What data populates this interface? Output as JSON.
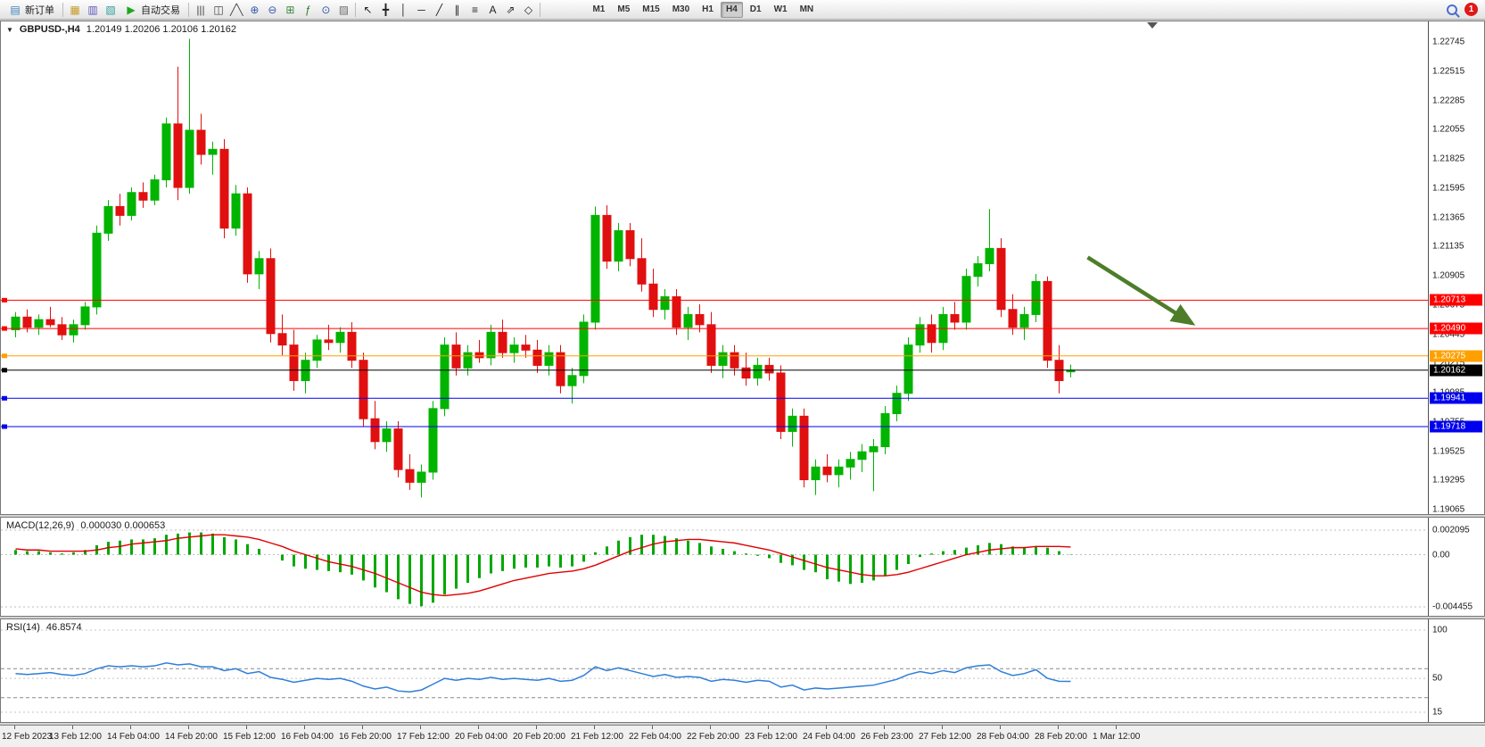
{
  "toolbar": {
    "new_order_label": "新订单",
    "new_order_icon": "▤",
    "autotrade_label": "自动交易",
    "autotrade_icon": "▶",
    "left_icons": [
      {
        "name": "new-chart-icon",
        "glyph": "▦",
        "color": "#c59a28"
      },
      {
        "name": "profiles-icon",
        "glyph": "▥",
        "color": "#5b55c0"
      },
      {
        "name": "data-window-icon",
        "glyph": "▧",
        "color": "#2f9e9e"
      }
    ],
    "chart_icons": [
      {
        "name": "bar-chart-icon",
        "glyph": "|||",
        "color": "#444444"
      },
      {
        "name": "candlestick-chart-icon",
        "glyph": "◫",
        "color": "#444444"
      },
      {
        "name": "line-chart-icon",
        "glyph": "╱╲",
        "color": "#444444"
      },
      {
        "name": "zoom-in-icon",
        "glyph": "⊕",
        "color": "#3558b0"
      },
      {
        "name": "zoom-out-icon",
        "glyph": "⊖",
        "color": "#3558b0"
      },
      {
        "name": "tile-windows-icon",
        "glyph": "⊞",
        "color": "#3a8a3a"
      },
      {
        "name": "indicators-icon",
        "glyph": "ƒ",
        "color": "#2a7a2a"
      },
      {
        "name": "periods-icon",
        "glyph": "⊙",
        "color": "#3558b0"
      },
      {
        "name": "templates-icon",
        "glyph": "▨",
        "color": "#707070"
      }
    ],
    "draw_icons": [
      {
        "name": "cursor-icon",
        "glyph": "↖",
        "color": "#222222"
      },
      {
        "name": "crosshair-icon",
        "glyph": "╋",
        "color": "#222222"
      },
      {
        "name": "vertical-line-icon",
        "glyph": "│",
        "color": "#222222"
      },
      {
        "name": "horizontal-line-icon",
        "glyph": "─",
        "color": "#222222"
      },
      {
        "name": "trendline-icon",
        "glyph": "╱",
        "color": "#222222"
      },
      {
        "name": "equidistant-channel-icon",
        "glyph": "∥",
        "color": "#222222"
      },
      {
        "name": "fibonacci-icon",
        "glyph": "≡",
        "color": "#222222"
      },
      {
        "name": "text-label-icon",
        "glyph": "A",
        "color": "#222222"
      },
      {
        "name": "arrows-icon",
        "glyph": "⇗",
        "color": "#222222"
      },
      {
        "name": "shapes-icon",
        "glyph": "◇",
        "color": "#222222"
      }
    ],
    "timeframes": [
      "M1",
      "M5",
      "M15",
      "M30",
      "H1",
      "H4",
      "D1",
      "W1",
      "MN"
    ],
    "active_timeframe": "H4",
    "notification_count": "1"
  },
  "chart": {
    "menu_icon": "▼",
    "title_symbol": "GBPUSD-,H4",
    "title_ohlc": "1.20149 1.20206 1.20106 1.20162"
  },
  "macd": {
    "label": "MACD(12,26,9)",
    "values": "0.000030 0.000653",
    "axis_labels": [
      "0.002095",
      "0.00",
      "-0.004455"
    ]
  },
  "rsi": {
    "label": "RSI(14)",
    "value": "46.8574",
    "axis_labels": [
      "100",
      "50",
      "15"
    ]
  },
  "chart_data": {
    "type": "candlestick",
    "symbol": "GBPUSD",
    "timeframe": "H4",
    "ohlc_current": {
      "open": 1.20149,
      "high": 1.20206,
      "low": 1.20106,
      "close": 1.20162
    },
    "price_range": {
      "max": 1.22745,
      "min": 1.19065
    },
    "price_axis_labels": [
      "1.22745",
      "1.22515",
      "1.22285",
      "1.22055",
      "1.21825",
      "1.21595",
      "1.21365",
      "1.21135",
      "1.20905",
      "1.20675",
      "1.20445",
      "1.20215",
      "1.19985",
      "1.19755",
      "1.19525",
      "1.19295",
      "1.19065"
    ],
    "time_labels": [
      "12 Feb 2023",
      "13 Feb 12:00",
      "14 Feb 04:00",
      "14 Feb 20:00",
      "15 Feb 12:00",
      "16 Feb 04:00",
      "16 Feb 20:00",
      "17 Feb 12:00",
      "20 Feb 04:00",
      "20 Feb 20:00",
      "21 Feb 12:00",
      "22 Feb 04:00",
      "22 Feb 20:00",
      "23 Feb 12:00",
      "24 Feb 04:00",
      "26 Feb 23:00",
      "27 Feb 12:00",
      "28 Feb 04:00",
      "28 Feb 20:00",
      "1 Mar 12:00"
    ],
    "colors": {
      "up": "#00b400",
      "down": "#e01010"
    },
    "candles": [
      [
        1.2048,
        1.2062,
        1.2042,
        1.2058
      ],
      [
        1.2058,
        1.2064,
        1.2046,
        1.205
      ],
      [
        1.205,
        1.206,
        1.2044,
        1.2056
      ],
      [
        1.2056,
        1.2066,
        1.205,
        1.2052
      ],
      [
        1.2052,
        1.2058,
        1.204,
        1.2044
      ],
      [
        1.2044,
        1.2056,
        1.2038,
        1.2052
      ],
      [
        1.2052,
        1.207,
        1.2048,
        1.2066
      ],
      [
        1.2066,
        1.213,
        1.206,
        1.2124
      ],
      [
        1.2124,
        1.215,
        1.2118,
        1.2145
      ],
      [
        1.2145,
        1.2155,
        1.213,
        1.2138
      ],
      [
        1.2138,
        1.216,
        1.2134,
        1.2156
      ],
      [
        1.2156,
        1.2164,
        1.2144,
        1.215
      ],
      [
        1.215,
        1.217,
        1.2146,
        1.2166
      ],
      [
        1.2166,
        1.2215,
        1.216,
        1.221
      ],
      [
        1.221,
        1.2255,
        1.215,
        1.216
      ],
      [
        1.216,
        1.2277,
        1.2155,
        1.2205
      ],
      [
        1.2205,
        1.2218,
        1.2178,
        1.2186
      ],
      [
        1.2186,
        1.2196,
        1.217,
        1.219
      ],
      [
        1.219,
        1.2198,
        1.212,
        1.2128
      ],
      [
        1.2128,
        1.2162,
        1.2122,
        1.2155
      ],
      [
        1.2155,
        1.216,
        1.2085,
        1.2092
      ],
      [
        1.2092,
        1.211,
        1.208,
        1.2104
      ],
      [
        1.2104,
        1.2112,
        1.2038,
        1.2045
      ],
      [
        1.2045,
        1.206,
        1.2028,
        1.2036
      ],
      [
        1.2036,
        1.2048,
        1.2,
        1.2008
      ],
      [
        1.2008,
        1.203,
        1.1998,
        1.2024
      ],
      [
        1.2024,
        1.2044,
        1.2018,
        1.204
      ],
      [
        1.204,
        1.2052,
        1.2032,
        1.2038
      ],
      [
        1.2038,
        1.205,
        1.203,
        1.2046
      ],
      [
        1.2046,
        1.2054,
        1.2018,
        1.2024
      ],
      [
        1.2024,
        1.203,
        1.1972,
        1.1978
      ],
      [
        1.1978,
        1.1992,
        1.1954,
        1.196
      ],
      [
        1.196,
        1.1976,
        1.1952,
        1.197
      ],
      [
        1.197,
        1.1976,
        1.1932,
        1.1938
      ],
      [
        1.1938,
        1.195,
        1.1922,
        1.1928
      ],
      [
        1.1928,
        1.1942,
        1.1916,
        1.1936
      ],
      [
        1.1936,
        1.1992,
        1.193,
        1.1986
      ],
      [
        1.1986,
        1.2042,
        1.198,
        1.2036
      ],
      [
        1.2036,
        1.2046,
        1.2012,
        1.2018
      ],
      [
        1.2018,
        1.2036,
        1.2012,
        1.203
      ],
      [
        1.203,
        1.204,
        1.2022,
        1.2026
      ],
      [
        1.2026,
        1.2052,
        1.202,
        1.2046
      ],
      [
        1.2046,
        1.2056,
        1.2026,
        1.203
      ],
      [
        1.203,
        1.2042,
        1.2022,
        1.2036
      ],
      [
        1.2036,
        1.2044,
        1.2026,
        1.2032
      ],
      [
        1.2032,
        1.204,
        1.2014,
        1.202
      ],
      [
        1.202,
        1.2036,
        1.2012,
        1.203
      ],
      [
        1.203,
        1.2036,
        1.1998,
        1.2004
      ],
      [
        1.2004,
        1.2018,
        1.199,
        1.2012
      ],
      [
        1.2012,
        1.206,
        1.2006,
        1.2054
      ],
      [
        1.2054,
        1.2145,
        1.2048,
        1.2138
      ],
      [
        1.2138,
        1.2146,
        1.2096,
        1.2102
      ],
      [
        1.2102,
        1.2132,
        1.2094,
        1.2126
      ],
      [
        1.2126,
        1.2132,
        1.2098,
        1.2104
      ],
      [
        1.2104,
        1.212,
        1.2078,
        1.2084
      ],
      [
        1.2084,
        1.2096,
        1.2058,
        1.2064
      ],
      [
        1.2064,
        1.208,
        1.2056,
        1.2074
      ],
      [
        1.2074,
        1.208,
        1.2044,
        1.205
      ],
      [
        1.205,
        1.2066,
        1.204,
        1.206
      ],
      [
        1.206,
        1.2068,
        1.2046,
        1.2052
      ],
      [
        1.2052,
        1.2062,
        1.2014,
        1.202
      ],
      [
        1.202,
        1.2036,
        1.201,
        1.203
      ],
      [
        1.203,
        1.2036,
        1.2012,
        1.2018
      ],
      [
        1.2018,
        1.203,
        1.2004,
        1.201
      ],
      [
        1.201,
        1.2026,
        1.2004,
        1.202
      ],
      [
        1.202,
        1.2026,
        1.2008,
        1.2014
      ],
      [
        1.2014,
        1.202,
        1.1962,
        1.1968
      ],
      [
        1.1968,
        1.1986,
        1.1956,
        1.198
      ],
      [
        1.198,
        1.1986,
        1.1924,
        1.193
      ],
      [
        1.193,
        1.1946,
        1.1918,
        1.194
      ],
      [
        1.194,
        1.195,
        1.1928,
        1.1934
      ],
      [
        1.1934,
        1.1946,
        1.1924,
        1.194
      ],
      [
        1.194,
        1.1952,
        1.193,
        1.1946
      ],
      [
        1.1946,
        1.1958,
        1.1936,
        1.1952
      ],
      [
        1.1952,
        1.1962,
        1.1921,
        1.1956
      ],
      [
        1.1956,
        1.1988,
        1.195,
        1.1982
      ],
      [
        1.1982,
        1.2004,
        1.1976,
        1.1998
      ],
      [
        1.1998,
        1.2042,
        1.1992,
        1.2036
      ],
      [
        1.2036,
        1.2058,
        1.203,
        1.2052
      ],
      [
        1.2052,
        1.206,
        1.203,
        1.2038
      ],
      [
        1.2038,
        1.2066,
        1.2032,
        1.206
      ],
      [
        1.206,
        1.207,
        1.2048,
        1.2054
      ],
      [
        1.2054,
        1.2096,
        1.2048,
        1.209
      ],
      [
        1.209,
        1.2106,
        1.2082,
        1.21
      ],
      [
        1.21,
        1.2143,
        1.2094,
        1.2112
      ],
      [
        1.2112,
        1.212,
        1.2058,
        1.2064
      ],
      [
        1.2064,
        1.2076,
        1.2044,
        1.205
      ],
      [
        1.205,
        1.2066,
        1.204,
        1.206
      ],
      [
        1.206,
        1.2092,
        1.2054,
        1.2086
      ],
      [
        1.2086,
        1.209,
        1.2018,
        1.2024
      ],
      [
        1.2024,
        1.2036,
        1.1998,
        1.2008
      ],
      [
        1.20149,
        1.20206,
        1.20106,
        1.20162
      ]
    ],
    "hlines": [
      {
        "price": 1.20713,
        "label": "1.20713",
        "color": "#ff0000"
      },
      {
        "price": 1.2049,
        "label": "1.20490",
        "color": "#ff0000"
      },
      {
        "price": 1.20275,
        "label": "1.20275",
        "color": "#ffa000"
      },
      {
        "price": 1.20162,
        "label": "1.20162",
        "color": "#000000",
        "current": true
      },
      {
        "price": 1.19941,
        "label": "1.19941",
        "color": "#0000ee"
      },
      {
        "price": 1.19718,
        "label": "1.19718",
        "color": "#0000ee"
      }
    ],
    "arrow_annotation": {
      "from": {
        "bar": 92.5,
        "price": 1.2105
      },
      "to": {
        "bar": 101.5,
        "price": 1.2053
      },
      "color": "#4e7d2a"
    },
    "macd": {
      "range": {
        "max": 0.002095,
        "min": -0.004455
      },
      "histogram_color": "#00a800",
      "signal_color": "#e00000",
      "histogram": [
        0.0004,
        0.0003,
        0.0003,
        0.0002,
        0.0001,
        0.0002,
        0.0004,
        0.0008,
        0.0011,
        0.0012,
        0.0013,
        0.0013,
        0.0014,
        0.0017,
        0.0018,
        0.0019,
        0.0019,
        0.0018,
        0.0015,
        0.0013,
        0.0009,
        0.0005,
        0.0,
        -0.0005,
        -0.001,
        -0.0012,
        -0.0013,
        -0.0014,
        -0.0015,
        -0.0017,
        -0.0022,
        -0.0028,
        -0.0032,
        -0.0038,
        -0.0042,
        -0.0044,
        -0.0041,
        -0.0034,
        -0.0029,
        -0.0024,
        -0.002,
        -0.0016,
        -0.0014,
        -0.0012,
        -0.0011,
        -0.0011,
        -0.001,
        -0.0011,
        -0.001,
        -0.0006,
        0.0002,
        0.0007,
        0.0012,
        0.0015,
        0.0017,
        0.0017,
        0.0016,
        0.0014,
        0.0012,
        0.001,
        0.0007,
        0.0005,
        0.0003,
        0.0001,
        -0.0001,
        -0.0003,
        -0.0007,
        -0.0009,
        -0.0013,
        -0.0015,
        -0.0021,
        -0.0023,
        -0.0025,
        -0.0024,
        -0.0022,
        -0.0018,
        -0.0013,
        -0.0008,
        -0.0002,
        0.0001,
        0.0003,
        0.0004,
        0.0006,
        0.0008,
        0.001,
        0.0009,
        0.0007,
        0.0006,
        0.0007,
        0.0006,
        0.0003,
        3e-05
      ],
      "signal": [
        0.0005,
        0.0004,
        0.0004,
        0.0003,
        0.0003,
        0.0003,
        0.0003,
        0.0004,
        0.0006,
        0.0007,
        0.0009,
        0.001,
        0.0011,
        0.0012,
        0.0014,
        0.0015,
        0.0016,
        0.0017,
        0.0017,
        0.0016,
        0.0015,
        0.0013,
        0.001,
        0.0007,
        0.0003,
        0.0,
        -0.0003,
        -0.0006,
        -0.0008,
        -0.001,
        -0.0013,
        -0.0016,
        -0.002,
        -0.0024,
        -0.0028,
        -0.0032,
        -0.0034,
        -0.0035,
        -0.0034,
        -0.0033,
        -0.0031,
        -0.0028,
        -0.0025,
        -0.0022,
        -0.002,
        -0.0018,
        -0.0016,
        -0.0015,
        -0.0014,
        -0.0012,
        -0.0009,
        -0.0005,
        -0.0001,
        0.0003,
        0.0006,
        0.0009,
        0.0011,
        0.0012,
        0.0013,
        0.0013,
        0.0012,
        0.0011,
        0.001,
        0.0008,
        0.0006,
        0.0004,
        0.0001,
        -0.0002,
        -0.0005,
        -0.0008,
        -0.0011,
        -0.0013,
        -0.0015,
        -0.0017,
        -0.0018,
        -0.0018,
        -0.0017,
        -0.0015,
        -0.0012,
        -0.0009,
        -0.0006,
        -0.0003,
        0.0,
        0.0002,
        0.0004,
        0.0005,
        0.0006,
        0.0006,
        0.0007,
        0.0007,
        0.0007,
        0.00065
      ]
    },
    "rsi": {
      "range": {
        "max": 100,
        "min": 15
      },
      "levels": [
        60,
        30
      ],
      "line_color": "#2f7ed8",
      "values": [
        55,
        54,
        55,
        56,
        54,
        53,
        55,
        60,
        63,
        62,
        63,
        62,
        63,
        66,
        64,
        65,
        62,
        62,
        58,
        60,
        55,
        57,
        51,
        49,
        46,
        48,
        50,
        49,
        50,
        47,
        42,
        39,
        41,
        37,
        36,
        38,
        44,
        50,
        48,
        50,
        49,
        51,
        49,
        50,
        49,
        48,
        50,
        47,
        48,
        53,
        62,
        58,
        61,
        58,
        55,
        52,
        54,
        51,
        52,
        51,
        47,
        49,
        48,
        46,
        48,
        47,
        41,
        43,
        38,
        40,
        39,
        40,
        41,
        42,
        43,
        46,
        49,
        54,
        57,
        55,
        58,
        56,
        61,
        63,
        64,
        57,
        53,
        55,
        59,
        50,
        47,
        46.86
      ]
    }
  }
}
